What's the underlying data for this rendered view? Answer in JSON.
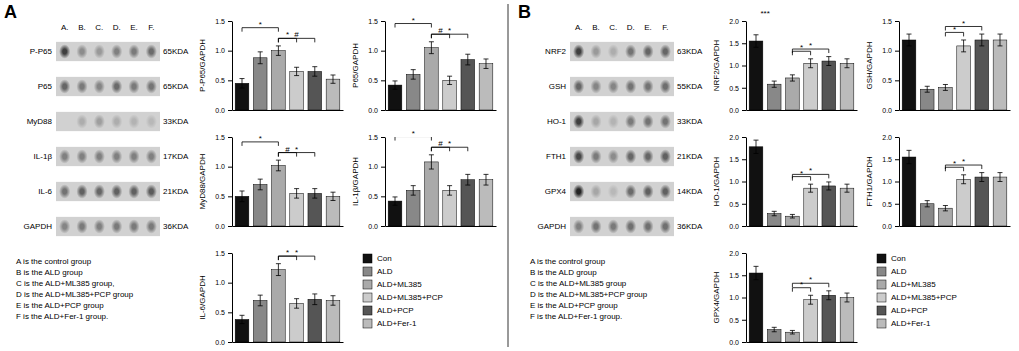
{
  "chart_data": [
    {
      "type": "blot",
      "title": "A",
      "categories": [
        "P-P65",
        "P65",
        "MyD88",
        "IL-1β",
        "IL-6",
        "GAPDH"
      ],
      "kda_labels": [
        "65KDA",
        "65KDA",
        "33KDA",
        "17KDA",
        "21KDA",
        "36KDA"
      ],
      "columns": [
        "A.",
        "B.",
        "C.",
        "D.",
        "E.",
        "F."
      ],
      "cells": [
        [
          0.25,
          0.55,
          0.6,
          0.5,
          0.48,
          0.42
        ],
        [
          0.4,
          0.48,
          0.52,
          0.42,
          0.48,
          0.46
        ],
        [
          0.82,
          0.68,
          0.62,
          0.68,
          0.7,
          0.72
        ],
        [
          0.5,
          0.5,
          0.5,
          0.5,
          0.5,
          0.5
        ],
        [
          0.45,
          0.38,
          0.4,
          0.38,
          0.38,
          0.36
        ],
        [
          0.52,
          0.48,
          0.5,
          0.48,
          0.48,
          0.48
        ]
      ],
      "annotations": [
        "A is the control group",
        "B is the ALD group",
        "C is the ALD+ML385 group,",
        "D is the ALD+ML385+PCP group",
        "E is the ALD+PCP group",
        "F is the ALD+Fer-1 group."
      ]
    },
    {
      "type": "bar",
      "y_label": "P-P65/GAPDH",
      "tick_labels": "y",
      "categories": [
        "Con",
        "ALD",
        "ALD+ML385",
        "ALD+ML385+PCP",
        "ALD+PCP",
        "ALD+Fer-1"
      ],
      "colors": [
        "#111111",
        "#888888",
        "#aaaaaa",
        "#cccccc",
        "#555555",
        "#bbbbbb"
      ],
      "values": [
        0.45,
        0.88,
        1.0,
        0.65,
        0.65,
        0.52
      ],
      "errors": [
        0.08,
        0.1,
        0.08,
        0.07,
        0.08,
        0.07
      ],
      "ylim": [
        0,
        1.5
      ],
      "yticks": [
        {
          "value": 0,
          "label": "0.0"
        },
        0.5,
        {
          "value": 1,
          "label": "1.0"
        },
        1.5
      ],
      "brackets": [
        {
          "from": 0,
          "to": 2,
          "label": "*",
          "tier": 2
        },
        {
          "from": 2,
          "to": 3,
          "label": "*",
          "tier": 1
        },
        {
          "from": 2,
          "to": 4,
          "label": "#",
          "tier": 1
        }
      ]
    },
    {
      "type": "bar",
      "y_label": "P65/GAPDH",
      "tick_labels": "y",
      "categories": [
        "Con",
        "ALD",
        "ALD+ML385",
        "ALD+ML385+PCP",
        "ALD+PCP",
        "ALD+Fer-1"
      ],
      "colors": [
        "#111111",
        "#888888",
        "#aaaaaa",
        "#cccccc",
        "#555555",
        "#bbbbbb"
      ],
      "values": [
        0.42,
        0.6,
        1.05,
        0.5,
        0.85,
        0.78
      ],
      "errors": [
        0.07,
        0.08,
        0.1,
        0.07,
        0.09,
        0.08
      ],
      "ylim": [
        0,
        1.5
      ],
      "yticks": [
        {
          "value": 0,
          "label": "0.0"
        },
        0.5,
        {
          "value": 1,
          "label": "1.0"
        },
        1.5
      ],
      "brackets": [
        {
          "from": 0,
          "to": 2,
          "label": "*",
          "tier": 2
        },
        {
          "from": 2,
          "to": 3,
          "label": "#",
          "tier": 1
        },
        {
          "from": 2,
          "to": 4,
          "label": "*",
          "tier": 1
        }
      ]
    },
    {
      "type": "bar",
      "y_label": "MyD88/GAPDH",
      "tick_labels": "y",
      "categories": [
        "Con",
        "ALD",
        "ALD+ML385",
        "ALD+ML385+PCP",
        "ALD+PCP",
        "ALD+Fer-1"
      ],
      "colors": [
        "#111111",
        "#888888",
        "#aaaaaa",
        "#cccccc",
        "#555555",
        "#bbbbbb"
      ],
      "values": [
        0.5,
        0.7,
        1.02,
        0.55,
        0.55,
        0.5
      ],
      "errors": [
        0.09,
        0.09,
        0.09,
        0.08,
        0.08,
        0.07
      ],
      "ylim": [
        0,
        1.5
      ],
      "yticks": [
        {
          "value": 0,
          "label": "0.0"
        },
        0.5,
        {
          "value": 1,
          "label": "1.0"
        },
        1.5
      ],
      "brackets": [
        {
          "from": 0,
          "to": 2,
          "label": "*",
          "tier": 2
        },
        {
          "from": 2,
          "to": 3,
          "label": "#",
          "tier": 1
        },
        {
          "from": 2,
          "to": 4,
          "label": "*",
          "tier": 1
        }
      ]
    },
    {
      "type": "bar",
      "y_label": "IL-1β/GAPDH",
      "tick_labels": "y",
      "categories": [
        "Con",
        "ALD",
        "ALD+ML385",
        "ALD+ML385+PCP",
        "ALD+PCP",
        "ALD+Fer-1"
      ],
      "colors": [
        "#111111",
        "#888888",
        "#aaaaaa",
        "#cccccc",
        "#555555",
        "#bbbbbb"
      ],
      "values": [
        0.42,
        0.6,
        1.08,
        0.6,
        0.78,
        0.78
      ],
      "errors": [
        0.07,
        0.08,
        0.12,
        0.08,
        0.09,
        0.09
      ],
      "ylim": [
        0,
        1.5
      ],
      "yticks": [
        {
          "value": 0,
          "label": "0.0"
        },
        0.5,
        {
          "value": 1,
          "label": "1.0"
        },
        1.5
      ],
      "brackets": [
        {
          "from": 0,
          "to": 2,
          "label": "*",
          "tier": 2
        },
        {
          "from": 2,
          "to": 3,
          "label": "#",
          "tier": 1
        },
        {
          "from": 2,
          "to": 4,
          "label": "*",
          "tier": 1
        }
      ]
    },
    {
      "type": "bar",
      "y_label": "IL-6/GAPDH",
      "tick_labels": "y",
      "legend": "right",
      "categories": [
        "Con",
        "ALD",
        "ALD+ML385",
        "ALD+ML385+PCP",
        "ALD+PCP",
        "ALD+Fer-1"
      ],
      "colors": [
        "#111111",
        "#888888",
        "#aaaaaa",
        "#cccccc",
        "#555555",
        "#bbbbbb"
      ],
      "values": [
        0.38,
        0.7,
        1.22,
        0.65,
        0.72,
        0.7
      ],
      "errors": [
        0.07,
        0.09,
        0.1,
        0.08,
        0.09,
        0.08
      ],
      "ylim": [
        0,
        1.5
      ],
      "yticks": [
        {
          "value": 0,
          "label": "0.0"
        },
        0.5,
        {
          "value": 1,
          "label": "1.0"
        },
        1.5
      ],
      "brackets": [
        {
          "from": 2,
          "to": 3,
          "label": "*",
          "tier": 1
        },
        {
          "from": 2,
          "to": 4,
          "label": "*",
          "tier": 1
        }
      ]
    },
    {
      "type": "blot",
      "title": "B",
      "categories": [
        "NRF2",
        "GSH",
        "HO-1",
        "FTH1",
        "GPX4",
        "GAPDH"
      ],
      "kda_labels": [
        "63KDA",
        "55KDA",
        "33KDA",
        "21KDA",
        "14KDA",
        "36KDA"
      ],
      "columns": [
        "A.",
        "B.",
        "C.",
        "D.",
        "E.",
        "F."
      ],
      "cells": [
        [
          0.25,
          0.6,
          0.68,
          0.45,
          0.4,
          0.4
        ],
        [
          0.4,
          0.52,
          0.52,
          0.45,
          0.45,
          0.43
        ],
        [
          0.25,
          0.65,
          0.7,
          0.48,
          0.45,
          0.45
        ],
        [
          0.28,
          0.48,
          0.55,
          0.4,
          0.4,
          0.38
        ],
        [
          0.15,
          0.65,
          0.72,
          0.42,
          0.38,
          0.38
        ],
        [
          0.5,
          0.45,
          0.48,
          0.44,
          0.44,
          0.44
        ]
      ],
      "annotations": [
        "A is the control group",
        "B is the ALD group",
        "C is the ALD+ML385 group",
        "D is the ALD+ML385+PCP group",
        "E is the ALD+PCP group",
        "F is the ALD+Fer-1 group."
      ]
    },
    {
      "type": "bar",
      "y_label": "NRF2/GAPDH",
      "tick_labels": "y",
      "categories": [
        "Con",
        "ALD",
        "ALD+ML385",
        "ALD+ML385+PCP",
        "ALD+PCP",
        "ALD+Fer-1"
      ],
      "colors": [
        "#111111",
        "#888888",
        "#aaaaaa",
        "#cccccc",
        "#555555",
        "#bbbbbb"
      ],
      "values": [
        1.55,
        0.58,
        0.72,
        1.05,
        1.1,
        1.05
      ],
      "errors": [
        0.14,
        0.07,
        0.07,
        0.1,
        0.1,
        0.1
      ],
      "ylim": [
        0,
        2
      ],
      "yticks": [
        {
          "value": 0,
          "label": "0.0"
        },
        0.5,
        {
          "value": 1,
          "label": "1.0"
        },
        1.5,
        {
          "value": 2,
          "label": "2.0"
        }
      ],
      "brackets": [
        {
          "from": 0,
          "to": 1,
          "label": "***",
          "tier": 2
        },
        {
          "from": 2,
          "to": 3,
          "label": "*",
          "tier": 1
        },
        {
          "from": 2,
          "to": 4,
          "label": "*",
          "tier": 1
        }
      ]
    },
    {
      "type": "bar",
      "y_label": "GSH/GAPDH",
      "tick_labels": "y",
      "categories": [
        "Con",
        "ALD",
        "ALD+ML385",
        "ALD+ML385+PCP",
        "ALD+PCP",
        "ALD+Fer-1"
      ],
      "colors": [
        "#111111",
        "#888888",
        "#aaaaaa",
        "#cccccc",
        "#555555",
        "#bbbbbb"
      ],
      "values": [
        1.18,
        0.35,
        0.38,
        1.08,
        1.18,
        1.18
      ],
      "errors": [
        0.1,
        0.05,
        0.05,
        0.1,
        0.1,
        0.1
      ],
      "ylim": [
        0,
        1.5
      ],
      "yticks": [
        {
          "value": 0,
          "label": "0.0"
        },
        0.5,
        {
          "value": 1,
          "label": "1.0"
        },
        1.5
      ],
      "brackets": [
        {
          "from": 2,
          "to": 3,
          "label": "*",
          "tier": 1
        },
        {
          "from": 2,
          "to": 4,
          "label": "*",
          "tier": 1
        }
      ]
    },
    {
      "type": "bar",
      "y_label": "HO-1/GAPDH",
      "tick_labels": "y",
      "categories": [
        "Con",
        "ALD",
        "ALD+ML385",
        "ALD+ML385+PCP",
        "ALD+PCP",
        "ALD+Fer-1"
      ],
      "colors": [
        "#111111",
        "#888888",
        "#aaaaaa",
        "#cccccc",
        "#555555",
        "#bbbbbb"
      ],
      "values": [
        1.78,
        0.28,
        0.22,
        0.85,
        0.9,
        0.85
      ],
      "errors": [
        0.15,
        0.05,
        0.04,
        0.09,
        0.09,
        0.09
      ],
      "ylim": [
        0,
        2
      ],
      "yticks": [
        {
          "value": 0,
          "label": "0.0"
        },
        0.5,
        {
          "value": 1,
          "label": "1.0"
        },
        1.5,
        {
          "value": 2,
          "label": "2.0"
        }
      ],
      "brackets": [
        {
          "from": 2,
          "to": 3,
          "label": "*",
          "tier": 1
        },
        {
          "from": 2,
          "to": 4,
          "label": "*",
          "tier": 1
        }
      ]
    },
    {
      "type": "bar",
      "y_label": "FTH1/GAPDH",
      "tick_labels": "y",
      "categories": [
        "Con",
        "ALD",
        "ALD+ML385",
        "ALD+ML385+PCP",
        "ALD+PCP",
        "ALD+Fer-1"
      ],
      "colors": [
        "#111111",
        "#888888",
        "#aaaaaa",
        "#cccccc",
        "#555555",
        "#bbbbbb"
      ],
      "values": [
        1.55,
        0.5,
        0.4,
        1.05,
        1.1,
        1.1
      ],
      "errors": [
        0.15,
        0.07,
        0.06,
        0.1,
        0.1,
        0.1
      ],
      "ylim": [
        0,
        2
      ],
      "yticks": [
        {
          "value": 0,
          "label": "0.0"
        },
        0.5,
        {
          "value": 1,
          "label": "1.0"
        },
        1.5,
        {
          "value": 2,
          "label": "2.0"
        }
      ],
      "brackets": [
        {
          "from": 2,
          "to": 3,
          "label": "*",
          "tier": 1
        },
        {
          "from": 2,
          "to": 4,
          "label": "*",
          "tier": 1
        }
      ]
    },
    {
      "type": "bar",
      "y_label": "GPX4/GAPDH",
      "tick_labels": "y",
      "legend": "right",
      "categories": [
        "Con",
        "ALD",
        "ALD+ML385",
        "ALD+ML385+PCP",
        "ALD+PCP",
        "ALD+Fer-1"
      ],
      "colors": [
        "#111111",
        "#888888",
        "#aaaaaa",
        "#cccccc",
        "#555555",
        "#bbbbbb"
      ],
      "values": [
        1.55,
        0.28,
        0.22,
        0.95,
        1.05,
        1.0
      ],
      "errors": [
        0.15,
        0.05,
        0.04,
        0.1,
        0.1,
        0.1
      ],
      "ylim": [
        0,
        2
      ],
      "yticks": [
        {
          "value": 0,
          "label": "0.0"
        },
        0.5,
        {
          "value": 1,
          "label": "1.0"
        },
        1.5,
        {
          "value": 2,
          "label": "2.0"
        }
      ],
      "brackets": [
        {
          "from": 2,
          "to": 3,
          "label": "*",
          "tier": 1
        },
        {
          "from": 2,
          "to": 4,
          "label": "*",
          "tier": 1
        }
      ]
    }
  ]
}
